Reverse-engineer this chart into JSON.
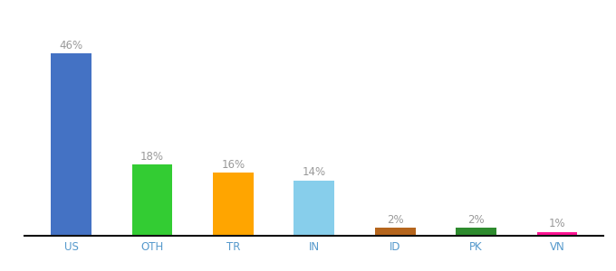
{
  "categories": [
    "US",
    "OTH",
    "TR",
    "IN",
    "ID",
    "PK",
    "VN"
  ],
  "values": [
    46,
    18,
    16,
    14,
    2,
    2,
    1
  ],
  "labels": [
    "46%",
    "18%",
    "16%",
    "14%",
    "2%",
    "2%",
    "1%"
  ],
  "bar_colors": [
    "#4472c4",
    "#33cc33",
    "#ffa500",
    "#87ceeb",
    "#b5651d",
    "#2e8b2e",
    "#ff1493"
  ],
  "label_color": "#999999",
  "label_fontsize": 8.5,
  "xlabel_fontsize": 8.5,
  "xlabel_color": "#5599cc",
  "background_color": "#ffffff",
  "ylim": [
    0,
    54
  ],
  "bar_width": 0.5
}
